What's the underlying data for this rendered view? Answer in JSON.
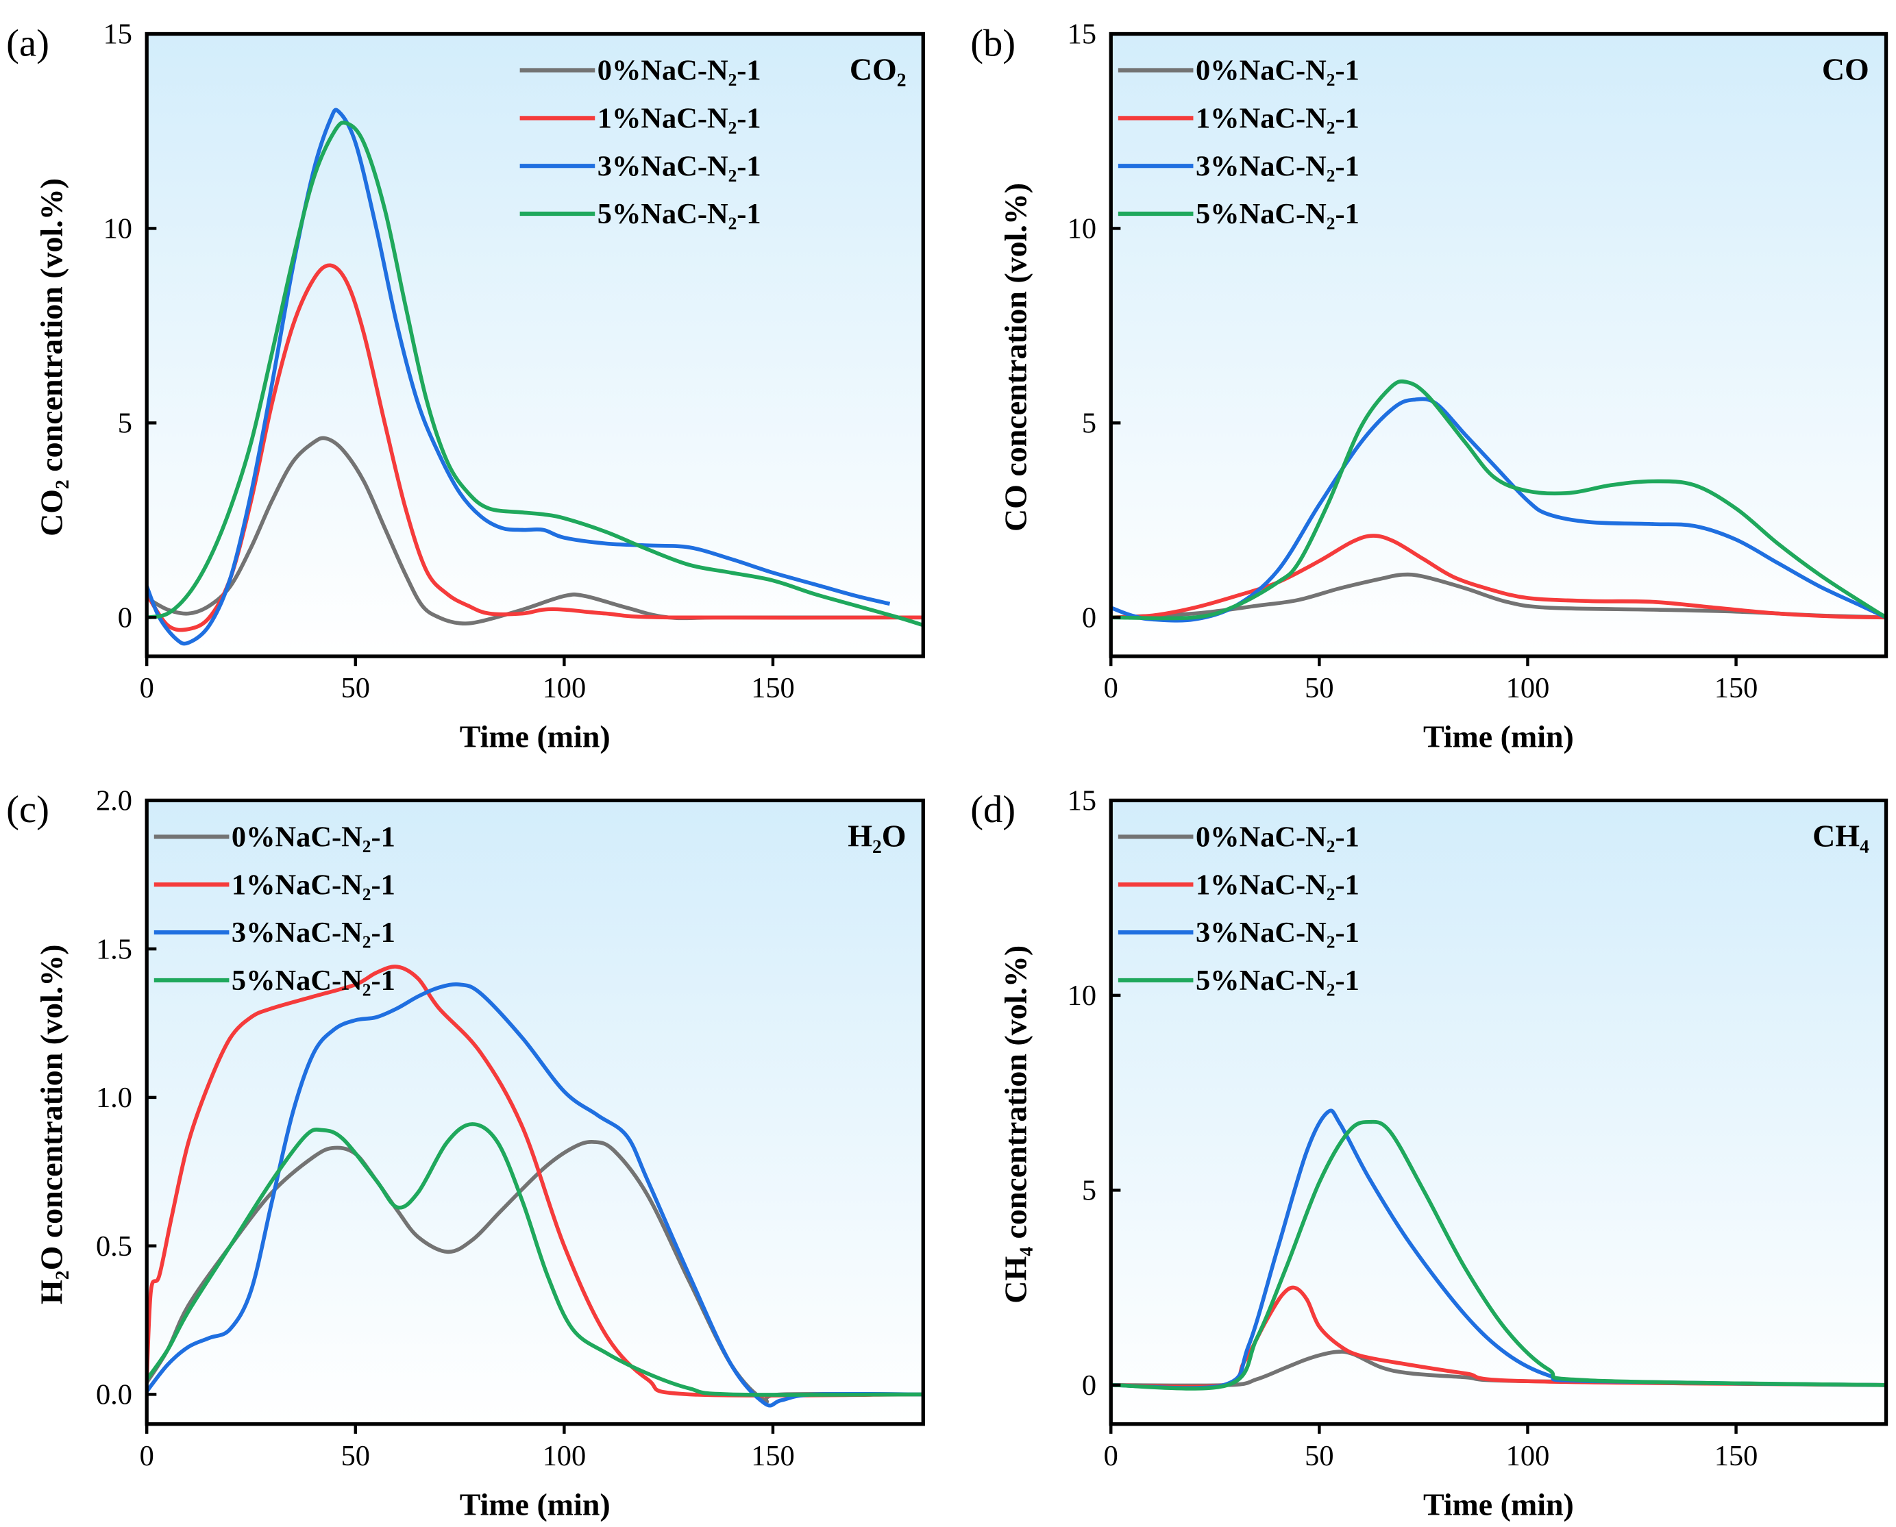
{
  "colors": {
    "0%": "#737373",
    "1%": "#f53b3b",
    "3%": "#1f6fe0",
    "5%": "#1fa85c",
    "bg_top": "#d3edfb",
    "bg_bottom": "#ffffff"
  },
  "chart_data": [
    {
      "type": "line",
      "panel_label": "(a)",
      "title": "CO₂",
      "xlabel": "Time (min)",
      "ylabel": "CO₂ concentration (vol.%)",
      "xlim": [
        0,
        186
      ],
      "ylim": [
        -1,
        15
      ],
      "xticks": [
        0,
        50,
        100,
        150
      ],
      "yticks": [
        0,
        5,
        10,
        15
      ],
      "legend": "top-right",
      "series": [
        {
          "name": "0%NaC-N₂-1",
          "color": "#737373",
          "x": [
            0,
            5,
            10,
            15,
            20,
            25,
            30,
            35,
            40,
            43,
            47,
            52,
            57,
            62,
            66,
            70,
            75,
            80,
            90,
            100,
            105,
            115,
            125,
            140,
            186
          ],
          "y": [
            0.5,
            0.2,
            0.1,
            0.3,
            0.8,
            1.8,
            3,
            4,
            4.5,
            4.6,
            4.3,
            3.5,
            2.3,
            1.1,
            0.3,
            0,
            -0.15,
            -0.1,
            0.2,
            0.55,
            0.55,
            0.25,
            0,
            0,
            0
          ]
        },
        {
          "name": "1%NaC-N₂-1",
          "color": "#f53b3b",
          "x": [
            0,
            5,
            10,
            15,
            20,
            25,
            30,
            35,
            40,
            44,
            48,
            52,
            57,
            62,
            67,
            72,
            77,
            82,
            90,
            95,
            100,
            110,
            125,
            186
          ],
          "y": [
            0.6,
            -0.2,
            -0.3,
            0,
            1,
            3,
            5.5,
            7.5,
            8.7,
            9.05,
            8.6,
            7.3,
            5,
            2.8,
            1.2,
            0.6,
            0.3,
            0.1,
            0.1,
            0.2,
            0.2,
            0.1,
            0,
            0
          ]
        },
        {
          "name": "3%NaC-N₂-1",
          "color": "#1f6fe0",
          "x": [
            0,
            3,
            7,
            10,
            15,
            20,
            25,
            30,
            35,
            40,
            44,
            46,
            50,
            55,
            60,
            65,
            70,
            75,
            80,
            85,
            90,
            95,
            100,
            110,
            120,
            130,
            140,
            150,
            160,
            170,
            178
          ],
          "y": [
            0.8,
            0,
            -0.55,
            -0.65,
            -0.2,
            1,
            3.2,
            6,
            9,
            11.5,
            12.8,
            13,
            12.2,
            10,
            7.5,
            5.5,
            4.2,
            3.2,
            2.6,
            2.3,
            2.25,
            2.25,
            2.05,
            1.9,
            1.85,
            1.8,
            1.5,
            1.15,
            0.85,
            0.55,
            0.35
          ]
        },
        {
          "name": "5%NaC-N₂-1",
          "color": "#1fa85c",
          "x": [
            0,
            5,
            10,
            15,
            20,
            25,
            30,
            35,
            40,
            45,
            48,
            52,
            57,
            62,
            67,
            72,
            77,
            82,
            90,
            95,
            100,
            110,
            120,
            130,
            140,
            150,
            160,
            170,
            180,
            186
          ],
          "y": [
            0,
            0.1,
            0.6,
            1.5,
            2.8,
            4.5,
            6.8,
            9.2,
            11.3,
            12.5,
            12.7,
            12.2,
            10.5,
            8,
            5.6,
            4,
            3.2,
            2.8,
            2.7,
            2.65,
            2.55,
            2.2,
            1.75,
            1.35,
            1.15,
            0.95,
            0.6,
            0.3,
            0,
            -0.2
          ]
        }
      ]
    },
    {
      "type": "line",
      "panel_label": "(b)",
      "title": "CO",
      "xlabel": "Time (min)",
      "ylabel": "CO  concentration (vol.%)",
      "xlim": [
        0,
        186
      ],
      "ylim": [
        -1,
        15
      ],
      "xticks": [
        0,
        50,
        100,
        150
      ],
      "yticks": [
        0,
        5,
        10,
        15
      ],
      "legend": "top-left",
      "series": [
        {
          "name": "0%NaC-N₂-1",
          "color": "#737373",
          "x": [
            0,
            20,
            35,
            45,
            55,
            65,
            70,
            75,
            85,
            95,
            105,
            130,
            150,
            170,
            186
          ],
          "y": [
            0,
            0.1,
            0.3,
            0.45,
            0.75,
            1.0,
            1.1,
            1.05,
            0.75,
            0.4,
            0.25,
            0.2,
            0.15,
            0.05,
            0
          ]
        },
        {
          "name": "1%NaC-N₂-1",
          "color": "#f53b3b",
          "x": [
            0,
            10,
            20,
            30,
            40,
            50,
            58,
            63,
            68,
            75,
            82,
            90,
            100,
            115,
            130,
            145,
            160,
            175,
            186
          ],
          "y": [
            0,
            0.05,
            0.25,
            0.55,
            0.9,
            1.45,
            1.95,
            2.1,
            1.95,
            1.5,
            1.05,
            0.75,
            0.5,
            0.42,
            0.4,
            0.25,
            0.1,
            0.02,
            0
          ]
        },
        {
          "name": "3%NaC-N₂-1",
          "color": "#1f6fe0",
          "x": [
            0,
            5,
            10,
            20,
            30,
            40,
            50,
            60,
            68,
            73,
            78,
            85,
            92,
            100,
            105,
            115,
            130,
            140,
            150,
            160,
            170,
            180,
            186
          ],
          "y": [
            0.25,
            0.05,
            -0.05,
            -0.05,
            0.3,
            1.2,
            2.9,
            4.5,
            5.4,
            5.6,
            5.5,
            4.7,
            3.9,
            3.0,
            2.65,
            2.45,
            2.4,
            2.35,
            2.0,
            1.4,
            0.8,
            0.3,
            0
          ]
        },
        {
          "name": "5%NaC-N₂-1",
          "color": "#1fa85c",
          "x": [
            0,
            20,
            30,
            40,
            45,
            52,
            60,
            67,
            71,
            76,
            85,
            92,
            100,
            110,
            120,
            130,
            140,
            150,
            160,
            170,
            180,
            186
          ],
          "y": [
            0,
            0,
            0.3,
            0.9,
            1.4,
            2.9,
            4.9,
            5.9,
            6.05,
            5.7,
            4.5,
            3.6,
            3.25,
            3.2,
            3.4,
            3.5,
            3.4,
            2.8,
            1.9,
            1.1,
            0.4,
            0
          ]
        }
      ]
    },
    {
      "type": "line",
      "panel_label": "(c)",
      "title": "H₂O",
      "xlabel": "Time (min)",
      "ylabel": "H₂O concentration (vol.%)",
      "xlim": [
        0,
        186
      ],
      "ylim": [
        -0.1,
        2.0
      ],
      "xticks": [
        0,
        50,
        100,
        150
      ],
      "yticks": [
        0.0,
        0.5,
        1.0,
        1.5,
        2.0
      ],
      "ytick_labels": [
        "0.0",
        "0.5",
        "1.0",
        "1.5",
        "2.0"
      ],
      "legend": "top-left",
      "series": [
        {
          "name": "0%NaC-N₂-1",
          "color": "#737373",
          "x": [
            0,
            5,
            10,
            20,
            30,
            40,
            45,
            50,
            55,
            60,
            65,
            72,
            78,
            85,
            95,
            102,
            107,
            112,
            120,
            130,
            140,
            148,
            152,
            186
          ],
          "y": [
            0.04,
            0.15,
            0.3,
            0.5,
            0.68,
            0.8,
            0.83,
            0.81,
            0.72,
            0.62,
            0.53,
            0.48,
            0.52,
            0.62,
            0.76,
            0.83,
            0.85,
            0.82,
            0.67,
            0.38,
            0.1,
            -0.02,
            0,
            0
          ]
        },
        {
          "name": "1%NaC-N₂-1",
          "color": "#f53b3b",
          "x": [
            0,
            1,
            3,
            6,
            10,
            15,
            20,
            25,
            30,
            40,
            50,
            55,
            60,
            65,
            70,
            80,
            90,
            100,
            110,
            120,
            130,
            186
          ],
          "y": [
            0.05,
            0.35,
            0.4,
            0.6,
            0.85,
            1.05,
            1.2,
            1.27,
            1.3,
            1.34,
            1.38,
            1.42,
            1.44,
            1.4,
            1.3,
            1.15,
            0.9,
            0.5,
            0.2,
            0.05,
            0,
            0
          ]
        },
        {
          "name": "3%NaC-N₂-1",
          "color": "#1f6fe0",
          "x": [
            0,
            5,
            10,
            15,
            20,
            25,
            30,
            35,
            40,
            45,
            50,
            55,
            60,
            65,
            70,
            75,
            80,
            90,
            100,
            108,
            115,
            120,
            130,
            140,
            148,
            152,
            160,
            186
          ],
          "y": [
            0.01,
            0.1,
            0.16,
            0.19,
            0.22,
            0.35,
            0.65,
            0.95,
            1.15,
            1.23,
            1.26,
            1.27,
            1.3,
            1.34,
            1.37,
            1.38,
            1.35,
            1.2,
            1.02,
            0.94,
            0.87,
            0.72,
            0.4,
            0.1,
            -0.03,
            -0.02,
            0,
            0
          ]
        },
        {
          "name": "5%NaC-N₂-1",
          "color": "#1fa85c",
          "x": [
            0,
            5,
            10,
            20,
            30,
            38,
            42,
            47,
            55,
            60,
            65,
            72,
            78,
            84,
            90,
            96,
            102,
            110,
            120,
            130,
            140,
            186
          ],
          "y": [
            0.05,
            0.15,
            0.28,
            0.5,
            0.72,
            0.87,
            0.89,
            0.86,
            0.72,
            0.63,
            0.68,
            0.85,
            0.91,
            0.85,
            0.65,
            0.4,
            0.22,
            0.14,
            0.07,
            0.02,
            0,
            0
          ]
        }
      ]
    },
    {
      "type": "line",
      "panel_label": "(d)",
      "title": "CH₄",
      "xlabel": "Time (min)",
      "ylabel": "CH₄ concentration (vol.%)",
      "xlim": [
        0,
        186
      ],
      "ylim": [
        -1,
        15
      ],
      "xticks": [
        0,
        50,
        100,
        150
      ],
      "yticks": [
        0,
        5,
        10,
        15
      ],
      "legend": "top-left",
      "series": [
        {
          "name": "0%NaC-N₂-1",
          "color": "#737373",
          "x": [
            0,
            28,
            35,
            42,
            48,
            54,
            58,
            65,
            72,
            85,
            100,
            186
          ],
          "y": [
            0,
            0,
            0.15,
            0.45,
            0.7,
            0.85,
            0.8,
            0.45,
            0.3,
            0.2,
            0.1,
            0
          ]
        },
        {
          "name": "1%NaC-N₂-1",
          "color": "#f53b3b",
          "x": [
            0,
            27,
            32,
            37,
            41,
            44,
            47,
            50,
            55,
            60,
            70,
            85,
            100,
            186
          ],
          "y": [
            0,
            0,
            0.6,
            1.6,
            2.3,
            2.5,
            2.2,
            1.5,
            1.0,
            0.75,
            0.55,
            0.3,
            0.1,
            0
          ]
        },
        {
          "name": "3%NaC-N₂-1",
          "color": "#1f6fe0",
          "x": [
            0,
            27,
            33,
            40,
            47,
            52,
            55,
            62,
            72,
            85,
            95,
            105,
            115,
            186
          ],
          "y": [
            0,
            0,
            1,
            3.5,
            6,
            7.0,
            6.7,
            5.3,
            3.6,
            1.8,
            0.8,
            0.25,
            0.1,
            0
          ]
        },
        {
          "name": "5%NaC-N₂-1",
          "color": "#1fa85c",
          "x": [
            0,
            28,
            35,
            42,
            50,
            57,
            62,
            67,
            75,
            85,
            95,
            105,
            115,
            186
          ],
          "y": [
            0,
            0,
            1.2,
            3,
            5.2,
            6.5,
            6.75,
            6.5,
            5,
            3,
            1.4,
            0.4,
            0.12,
            0
          ]
        }
      ]
    }
  ]
}
